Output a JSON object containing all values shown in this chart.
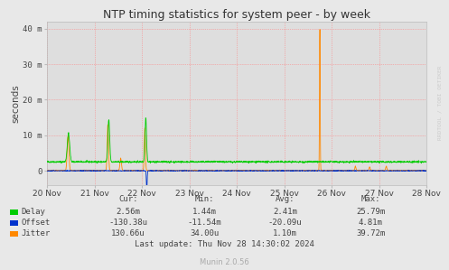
{
  "title": "NTP timing statistics for system peer - by week",
  "ylabel": "seconds",
  "background_color": "#e8e8e8",
  "plot_bg_color": "#dedede",
  "grid_color": "#ff8080",
  "x_ticks": [
    0,
    1,
    2,
    3,
    4,
    5,
    6,
    7,
    8
  ],
  "x_tick_labels": [
    "20 Nov",
    "21 Nov",
    "22 Nov",
    "23 Nov",
    "24 Nov",
    "25 Nov",
    "26 Nov",
    "27 Nov",
    "28 Nov"
  ],
  "ylim": [
    -4,
    42
  ],
  "ytick_values": [
    0,
    10,
    20,
    30,
    40
  ],
  "ytick_labels": [
    "0",
    "10 m",
    "20 m",
    "30 m",
    "40 m"
  ],
  "delay_color": "#00cc00",
  "offset_color": "#0033cc",
  "jitter_color": "#ff8800",
  "watermark": "RRDTOOL / TOBI OETIKER",
  "munin_version": "Munin 2.0.56",
  "stats_headers": [
    "Cur:",
    "Min:",
    "Avg:",
    "Max:"
  ],
  "delay_stats": [
    "2.56m",
    "1.44m",
    "2.41m",
    "25.79m"
  ],
  "offset_stats": [
    "-130.38u",
    "-11.54m",
    "-20.09u",
    "4.81m"
  ],
  "jitter_stats": [
    "130.66u",
    "34.00u",
    "1.10m",
    "39.72m"
  ],
  "last_update": "Last update: Thu Nov 28 14:30:02 2024"
}
